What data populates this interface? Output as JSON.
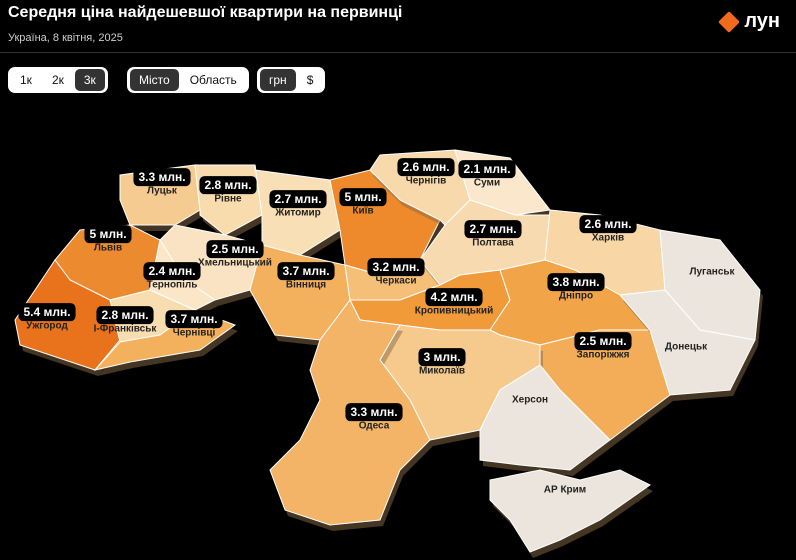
{
  "header": {
    "title": "Середня ціна найдешевшої квартири на первинці",
    "subtitle": "Україна, 8 квітня, 2025"
  },
  "logo": "лун",
  "controls": {
    "rooms": [
      "1к",
      "2к",
      "3к"
    ],
    "area": [
      "Місто",
      "Область"
    ],
    "currency": [
      "грн",
      "$"
    ]
  },
  "regions": [
    {
      "name": "Луцьк",
      "price": "3.3 млн.",
      "color": "#f5cb91"
    },
    {
      "name": "Рівне",
      "price": "2.8 млн.",
      "color": "#f8dcae"
    },
    {
      "name": "Житомир",
      "price": "2.7 млн.",
      "color": "#f9dfb5"
    },
    {
      "name": "Київ",
      "price": "5 млн.",
      "color": "#ee8a2c"
    },
    {
      "name": "Чернігів",
      "price": "2.6 млн.",
      "color": "#f8d9ab"
    },
    {
      "name": "Суми",
      "price": "2.1 млн.",
      "color": "#fbe8cc"
    },
    {
      "name": "Львів",
      "price": "5 млн.",
      "color": "#ec8a30"
    },
    {
      "name": "Хмельницький",
      "price": "2.5 млн.",
      "color": "#fae3c2"
    },
    {
      "name": "Тернопіль",
      "price": "2.4 млн.",
      "color": "#fbe6c8"
    },
    {
      "name": "Вінниця",
      "price": "3.7 млн.",
      "color": "#f3b15d"
    },
    {
      "name": "Черкаси",
      "price": "3.2 млн.",
      "color": "#f5bf78"
    },
    {
      "name": "Полтава",
      "price": "2.7 млн.",
      "color": "#f8dab0"
    },
    {
      "name": "Харків",
      "price": "2.6 млн.",
      "color": "#f8d6a5"
    },
    {
      "name": "Ужгород",
      "price": "5.4 млн.",
      "color": "#e8731c"
    },
    {
      "name": "І-Франківськ",
      "price": "2.8 млн.",
      "color": "#f8ddb0"
    },
    {
      "name": "Чернівці",
      "price": "3.7 млн.",
      "color": "#f3b15d"
    },
    {
      "name": "Кропивницький",
      "price": "4.2 млн.",
      "color": "#f09a3a"
    },
    {
      "name": "Дніпро",
      "price": "3.8 млн.",
      "color": "#f2a548"
    },
    {
      "name": "Запоріжжя",
      "price": "2.5 млн.",
      "color": "#f3ad58"
    },
    {
      "name": "Миколаїв",
      "price": "3 млн.",
      "color": "#f6c98c"
    },
    {
      "name": "Одеса",
      "price": "3.3 млн.",
      "color": "#f4b468"
    },
    {
      "name": "Луганськ",
      "color": "#ebe5dd"
    },
    {
      "name": "Донецьк",
      "color": "#ebe5dd"
    },
    {
      "name": "Херсон",
      "color": "#ebe5dd"
    },
    {
      "name": "АР Крим",
      "color": "#ebe5dd"
    }
  ]
}
